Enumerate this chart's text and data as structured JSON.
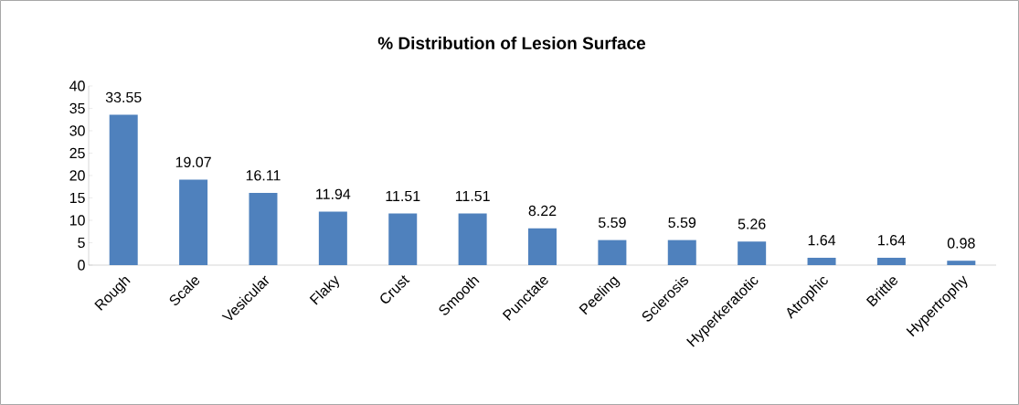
{
  "chart_data": {
    "type": "bar",
    "title": "% Distribution of Lesion Surface",
    "categories": [
      "Rough",
      "Scale",
      "Vesicular",
      "Flaky",
      "Crust",
      "Smooth",
      "Punctate",
      "Peeling",
      "Sclerosis",
      "Hyperkeratotic",
      "Atrophic",
      "Brittle",
      "Hypertrophy"
    ],
    "values": [
      33.55,
      19.07,
      16.11,
      11.94,
      11.51,
      11.51,
      8.22,
      5.59,
      5.59,
      5.26,
      1.64,
      1.64,
      0.98
    ],
    "color": "#4f81bd",
    "ylim": [
      0,
      40
    ],
    "yticks": [
      0,
      5,
      10,
      15,
      20,
      25,
      30,
      35,
      40
    ],
    "data_labels": true
  }
}
